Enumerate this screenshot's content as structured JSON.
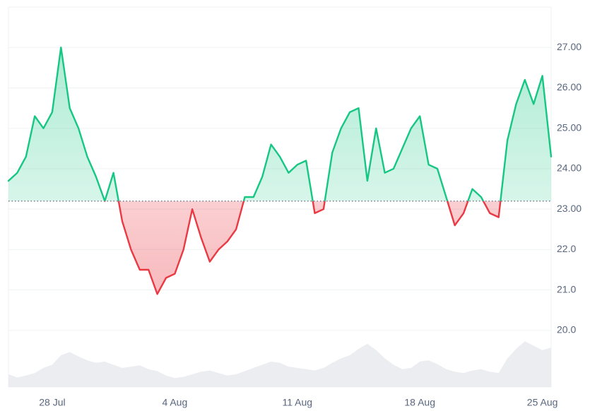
{
  "chart_data": {
    "type": "line",
    "categories": [
      null,
      null,
      null,
      null,
      null,
      "28 Jul",
      null,
      null,
      null,
      null,
      null,
      null,
      null,
      null,
      null,
      null,
      null,
      null,
      null,
      "4 Aug",
      null,
      null,
      null,
      null,
      null,
      null,
      null,
      null,
      null,
      null,
      null,
      null,
      null,
      "11 Aug",
      null,
      null,
      null,
      null,
      null,
      null,
      null,
      null,
      null,
      null,
      null,
      null,
      null,
      "18 Aug",
      null,
      null,
      null,
      null,
      null,
      null,
      null,
      null,
      null,
      null,
      null,
      null,
      null,
      "25 Aug",
      null
    ],
    "values": [
      23.7,
      23.9,
      24.3,
      25.3,
      25.0,
      25.4,
      27.0,
      25.5,
      25.0,
      24.3,
      23.8,
      23.2,
      23.9,
      22.7,
      22.0,
      21.5,
      21.5,
      20.9,
      21.3,
      21.4,
      22.0,
      23.0,
      22.3,
      21.7,
      22.0,
      22.2,
      22.5,
      23.3,
      23.3,
      23.8,
      24.6,
      24.3,
      23.9,
      24.1,
      24.2,
      22.9,
      23.0,
      24.4,
      25.0,
      25.4,
      25.5,
      23.7,
      25.0,
      23.9,
      24.0,
      24.5,
      25.0,
      25.3,
      24.1,
      24.0,
      23.3,
      22.6,
      22.9,
      23.5,
      23.3,
      22.9,
      22.8,
      24.7,
      25.6,
      26.2,
      25.6,
      26.3,
      24.3
    ],
    "baseline": 23.2,
    "color": "#16c784",
    "down_color": "#ea3943",
    "ylim": [
      18.6,
      28.0
    ],
    "yticks": [
      {
        "value": 20,
        "label": "20.0"
      },
      {
        "value": 21,
        "label": "21.0"
      },
      {
        "value": 22,
        "label": "22.0"
      },
      {
        "value": 23,
        "label": "23.00"
      },
      {
        "value": 24,
        "label": "24.00"
      },
      {
        "value": 25,
        "label": "25.00"
      },
      {
        "value": 26,
        "label": "26.00"
      },
      {
        "value": 27,
        "label": "27.00"
      }
    ],
    "grid": true,
    "volume": {
      "color": "#e6e9ee",
      "values": [
        20,
        15,
        18,
        22,
        30,
        35,
        50,
        55,
        48,
        42,
        38,
        40,
        35,
        30,
        32,
        34,
        28,
        25,
        18,
        14,
        16,
        20,
        24,
        26,
        22,
        18,
        20,
        25,
        30,
        35,
        40,
        38,
        32,
        30,
        28,
        26,
        30,
        38,
        45,
        50,
        60,
        68,
        58,
        45,
        35,
        28,
        30,
        40,
        42,
        36,
        28,
        24,
        22,
        26,
        28,
        24,
        22,
        45,
        60,
        72,
        65,
        58,
        62
      ]
    }
  }
}
